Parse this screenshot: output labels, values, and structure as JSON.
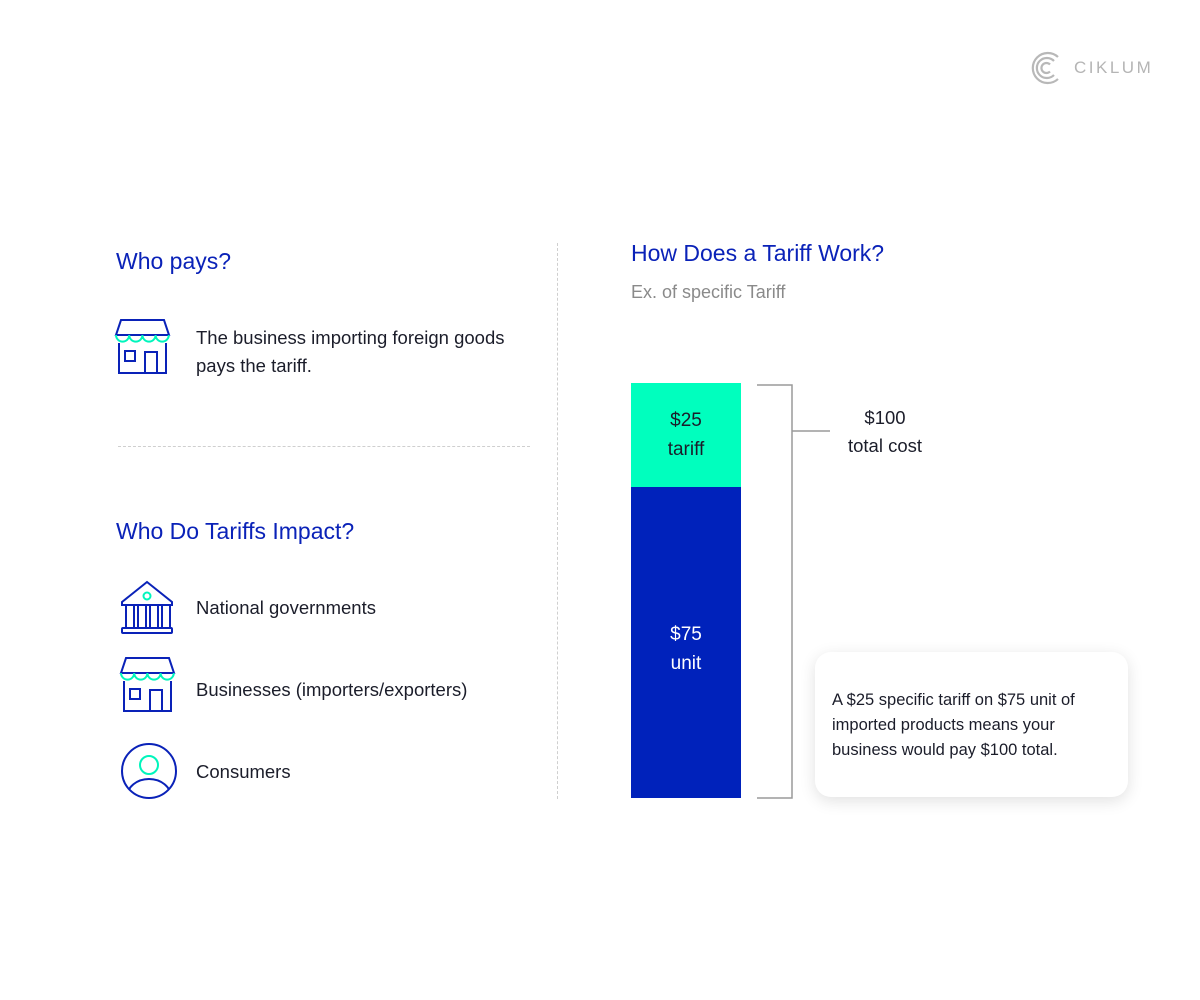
{
  "logo": {
    "text": "CIKLUM"
  },
  "left": {
    "who_pays": {
      "title": "Who pays?",
      "text": "The business importing foreign goods pays the tariff.",
      "icon": "store-icon"
    },
    "impact": {
      "title": "Who Do Tariffs Impact?",
      "items": [
        {
          "label": "National governments",
          "icon": "government-building-icon"
        },
        {
          "label": "Businesses (importers/exporters)",
          "icon": "store-icon"
        },
        {
          "label": "Consumers",
          "icon": "user-icon"
        }
      ]
    }
  },
  "right": {
    "title": "How Does a Tariff Work?",
    "subtitle": "Ex. of specific Tariff",
    "segments": [
      {
        "value_label": "$25",
        "name": "tariff",
        "value": 25,
        "color": "#00FFBE"
      },
      {
        "value_label": "$75",
        "name": "unit",
        "value": 75,
        "color": "#0022BB"
      }
    ],
    "total": {
      "value_label": "$100",
      "name": "total cost"
    },
    "note": "A $25 specific tariff on $75 unit of imported products means your business would pay $100 total."
  },
  "colors": {
    "blue": "#0A22B8",
    "teal": "#00FFBE",
    "logo_gray": "#b5b5b5"
  }
}
